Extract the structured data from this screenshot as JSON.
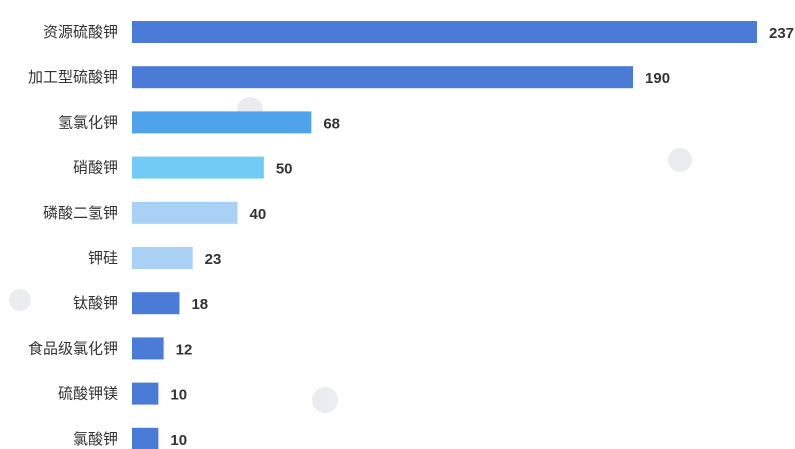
{
  "chart_data": {
    "type": "bar",
    "orientation": "horizontal",
    "categories": [
      "资源硫酸钾",
      "加工型硫酸钾",
      "氢氯化钾",
      "硝酸钾",
      "磷酸二氢钾",
      "钾硅",
      "钛酸钾",
      "食品级氯化钾",
      "硫酸钾镁",
      "氯酸钾"
    ],
    "values": [
      237,
      190,
      68,
      50,
      40,
      23,
      18,
      12,
      10,
      10
    ],
    "colors": [
      "#4a7bd6",
      "#4a7bd6",
      "#4ea3ea",
      "#72cbf4",
      "#a9d0f5",
      "#a9d0f5",
      "#4a7bd6",
      "#4a7bd6",
      "#4a7bd6",
      "#4a7bd6"
    ],
    "title": "",
    "xlabel": "",
    "ylabel": "",
    "xlim": [
      0,
      237
    ],
    "grid": false,
    "legend": "none"
  }
}
